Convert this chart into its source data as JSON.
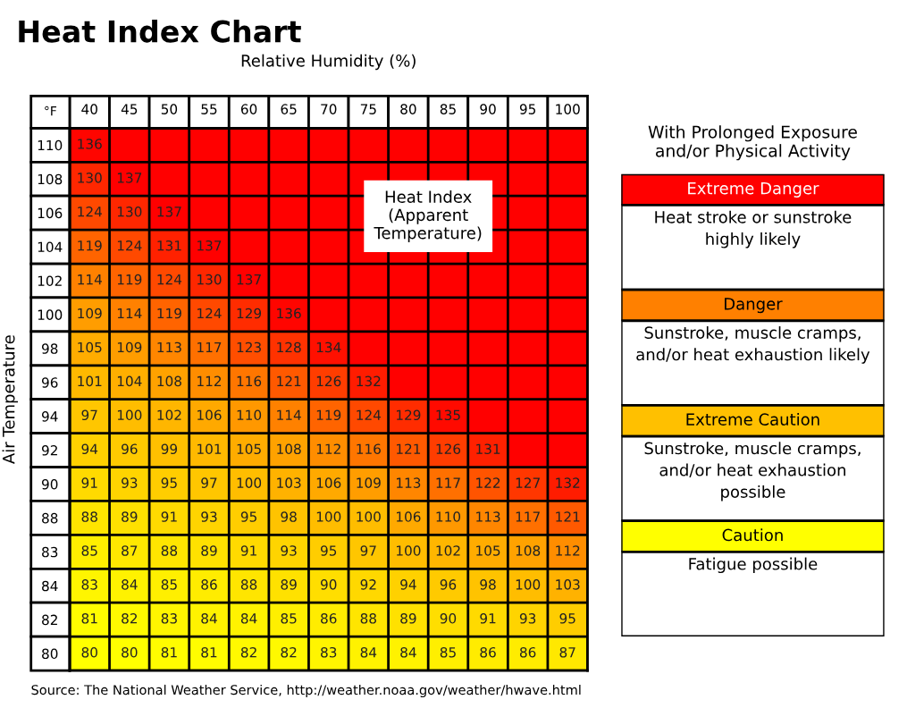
{
  "chart_data": [
    {
      "type": "heatmap",
      "title": "Heat Index Chart",
      "xlabel": "Relative Humidity (%)",
      "ylabel": "Air Temperature",
      "categories": [
        "40",
        "45",
        "50",
        "55",
        "60",
        "65",
        "70",
        "75",
        "80",
        "85",
        "90",
        "95",
        "100"
      ],
      "y_categories": [
        "110",
        "108",
        "106",
        "104",
        "102",
        "100",
        "98",
        "96",
        "94",
        "92",
        "90",
        "88",
        "83",
        "84",
        "82",
        "80"
      ],
      "colors": [
        "#ffff00",
        "#ffa000",
        "#ff0000"
      ],
      "cells": [
        [
          136,
          null,
          null,
          null,
          null,
          null,
          null,
          null,
          null,
          null,
          null,
          null,
          null
        ],
        [
          130,
          137,
          null,
          null,
          null,
          null,
          null,
          null,
          null,
          null,
          null,
          null,
          null
        ],
        [
          124,
          130,
          137,
          null,
          null,
          null,
          null,
          null,
          null,
          null,
          null,
          null,
          null
        ],
        [
          119,
          124,
          131,
          137,
          null,
          null,
          null,
          null,
          null,
          null,
          null,
          null,
          null
        ],
        [
          114,
          119,
          124,
          130,
          137,
          null,
          null,
          null,
          null,
          null,
          null,
          null,
          null
        ],
        [
          109,
          114,
          119,
          124,
          129,
          136,
          null,
          null,
          null,
          null,
          null,
          null,
          null
        ],
        [
          105,
          109,
          113,
          117,
          123,
          128,
          134,
          null,
          null,
          null,
          null,
          null,
          null
        ],
        [
          101,
          104,
          108,
          112,
          116,
          121,
          126,
          132,
          null,
          null,
          null,
          null,
          null
        ],
        [
          97,
          100,
          102,
          106,
          110,
          114,
          119,
          124,
          129,
          135,
          null,
          null,
          null
        ],
        [
          94,
          96,
          99,
          101,
          105,
          108,
          112,
          116,
          121,
          126,
          131,
          null,
          null
        ],
        [
          91,
          93,
          95,
          97,
          100,
          103,
          106,
          109,
          113,
          117,
          122,
          127,
          132
        ],
        [
          88,
          89,
          91,
          93,
          95,
          98,
          100,
          100,
          106,
          110,
          113,
          117,
          121
        ],
        [
          85,
          87,
          88,
          89,
          91,
          93,
          95,
          97,
          100,
          102,
          105,
          108,
          112
        ],
        [
          83,
          84,
          85,
          86,
          88,
          89,
          90,
          92,
          94,
          96,
          98,
          100,
          103
        ],
        [
          81,
          82,
          83,
          84,
          84,
          85,
          86,
          88,
          89,
          90,
          91,
          93,
          95
        ],
        [
          80,
          80,
          81,
          81,
          82,
          82,
          83,
          84,
          84,
          85,
          86,
          86,
          87
        ]
      ],
      "data_labels": true,
      "grid": true,
      "annotations": [
        "°F",
        "Heat Index\n(Apparent\nTemperature)",
        "Source: The National Weather Service, http://weather.noaa.gov/weather/hwave.html"
      ]
    },
    {
      "type": "other",
      "title": "With Prolonged Exposure\nand/or Physical Activity",
      "categories": [
        "Extreme Danger",
        "Danger",
        "Extreme Caution",
        "Caution"
      ],
      "colors": [
        "#ff0000",
        "#ff8000",
        "#ffc000",
        "#ffff00"
      ],
      "annotations": [
        "Heat stroke or sunstroke\nhighly likely",
        "Sunstroke, muscle cramps,\nand/or heat exhaustion likely",
        "Sunstroke, muscle cramps,\nand/or heat exhaustion\npossible",
        "Fatigue possible"
      ]
    }
  ]
}
